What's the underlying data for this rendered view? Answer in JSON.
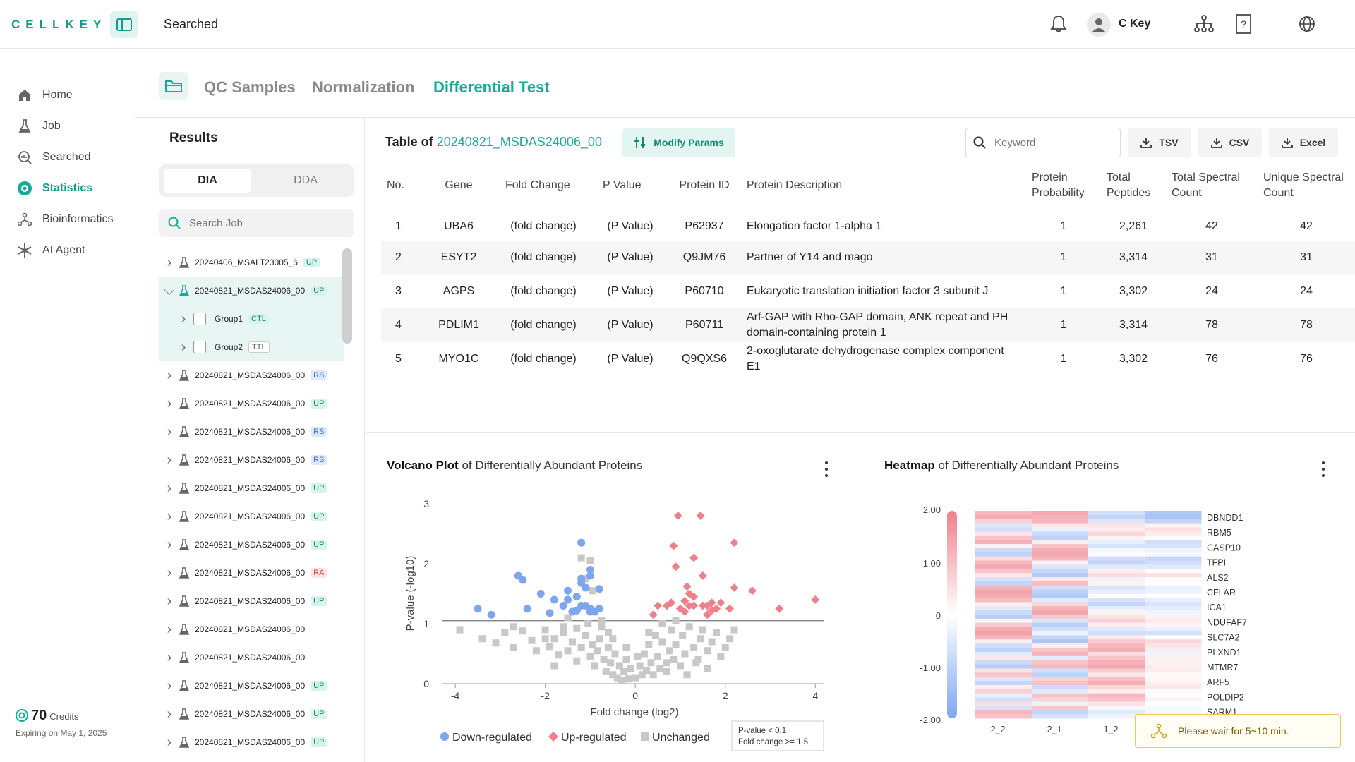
{
  "app": {
    "logo": "CELLKEY",
    "page_crumb": "Searched",
    "user_name": "C Key"
  },
  "sidebar": {
    "items": [
      {
        "label": "Home",
        "icon": "home-icon"
      },
      {
        "label": "Job",
        "icon": "flask-icon"
      },
      {
        "label": "Searched",
        "icon": "search-chart-icon"
      },
      {
        "label": "Statistics",
        "icon": "statistics-icon",
        "active": true
      },
      {
        "label": "Bioinformatics",
        "icon": "network-icon"
      },
      {
        "label": "AI Agent",
        "icon": "sparkle-icon"
      }
    ],
    "credits_value": "70",
    "credits_label": "Credits",
    "credits_expiry": "Expiring on May 1, 2025"
  },
  "tabs": [
    {
      "label": "QC Samples"
    },
    {
      "label": "Normalization"
    },
    {
      "label": "Differential Test",
      "active": true
    }
  ],
  "results": {
    "title": "Results",
    "seg": [
      "DIA",
      "DDA"
    ],
    "search_placeholder": "Search Job",
    "jobs": [
      {
        "name": "20240406_MSALT23005_6",
        "badge": "UP",
        "kind": "up"
      },
      {
        "name": "20240821_MSDAS24006_00",
        "badge": "UP",
        "kind": "up",
        "expanded": true
      },
      {
        "name": "Group1",
        "badge": "CTL",
        "kind": "ctl",
        "child": true
      },
      {
        "name": "Group2",
        "badge": "TTL",
        "kind": "ttl",
        "child": true
      },
      {
        "name": "20240821_MSDAS24006_00",
        "badge": "RS",
        "kind": "rs"
      },
      {
        "name": "20240821_MSDAS24006_00",
        "badge": "UP",
        "kind": "up"
      },
      {
        "name": "20240821_MSDAS24006_00",
        "badge": "RS",
        "kind": "rs"
      },
      {
        "name": "20240821_MSDAS24006_00",
        "badge": "RS",
        "kind": "rs"
      },
      {
        "name": "20240821_MSDAS24006_00",
        "badge": "UP",
        "kind": "up"
      },
      {
        "name": "20240821_MSDAS24006_00",
        "badge": "UP",
        "kind": "up"
      },
      {
        "name": "20240821_MSDAS24006_00",
        "badge": "UP",
        "kind": "up"
      },
      {
        "name": "20240821_MSDAS24006_00",
        "badge": "RA",
        "kind": "ra"
      },
      {
        "name": "20240821_MSDAS24006_00",
        "badge": "UP",
        "kind": "up"
      },
      {
        "name": "20240821_MSDAS24006_00",
        "badge": "",
        "kind": ""
      },
      {
        "name": "20240821_MSDAS24006_00",
        "badge": "",
        "kind": ""
      },
      {
        "name": "20240821_MSDAS24006_00",
        "badge": "UP",
        "kind": "up"
      },
      {
        "name": "20240821_MSDAS24006_00",
        "badge": "UP",
        "kind": "up"
      },
      {
        "name": "20240821_MSDAS24006_00",
        "badge": "UP",
        "kind": "up"
      }
    ]
  },
  "table": {
    "title_prefix": "Table of",
    "title_job": "20240821_MSDAS24006_00",
    "modify_label": "Modify Params",
    "keyword_placeholder": "Keyword",
    "buttons": [
      "TSV",
      "CSV",
      "Excel"
    ],
    "headers": [
      "No.",
      "Gene",
      "Fold Change",
      "P Value",
      "Protein ID",
      "Protein Description",
      "Protein Probability",
      "Total Peptides",
      "Total Spectral Count",
      "Unique Spectral Count"
    ],
    "rows": [
      [
        "1",
        "UBA6",
        "(fold change)",
        "(P Value)",
        "P62937",
        "Elongation factor 1-alpha 1",
        "1",
        "2,261",
        "42",
        "42"
      ],
      [
        "2",
        "ESYT2",
        "(fold change)",
        "(P Value)",
        "Q9JM76",
        "Partner of Y14 and mago",
        "1",
        "3,314",
        "31",
        "31"
      ],
      [
        "3",
        "AGPS",
        "(fold change)",
        "(P Value)",
        "P60710",
        "Eukaryotic translation initiation factor 3 subunit J",
        "1",
        "3,302",
        "24",
        "24"
      ],
      [
        "4",
        "PDLIM1",
        "(fold change)",
        "(P Value)",
        "P60711",
        "Arf-GAP with Rho-GAP domain, ANK repeat and PH domain-containing protein 1",
        "1",
        "3,314",
        "78",
        "78"
      ],
      [
        "5",
        "MYO1C",
        "(fold change)",
        "(P Value)",
        "Q9QXS6",
        "2-oxoglutarate dehydrogenase complex component E1",
        "1",
        "3,302",
        "76",
        "76"
      ]
    ]
  },
  "volcano": {
    "title_bold": "Volcano Plot",
    "title_rest": "of Differentially Abundant Proteins",
    "note_line1": "P-value < 0.1",
    "note_line2": "Fold change >= 1.5"
  },
  "heatmap": {
    "title_bold": "Heatmap",
    "title_rest": "of Differentially Abundant Proteins"
  },
  "toast": {
    "text": "Please wait for 5~10 min."
  },
  "colors": {
    "accent": "#19a99a",
    "down": "#7ea6f0",
    "up": "#ef7f8a",
    "unchanged": "#c8c8c8"
  },
  "chart_data": [
    {
      "type": "scatter",
      "title": "Volcano Plot of Differentially Abundant Proteins",
      "xlabel": "Fold change (log2)",
      "ylabel": "P-value (-log10)",
      "xlim": [
        -4.3,
        4.2
      ],
      "ylim": [
        0,
        3
      ],
      "xticks": [
        "-4",
        "-2",
        "0",
        "2",
        "4"
      ],
      "yticks": [
        "0",
        "1",
        "2",
        "3"
      ],
      "threshold_y": 1.05,
      "legend": [
        "Down-regulated",
        "Up-regulated",
        "Unchanged"
      ],
      "series": [
        {
          "name": "Down-regulated",
          "points": [
            [
              -3.5,
              1.25
            ],
            [
              -3.2,
              1.15
            ],
            [
              -2.6,
              1.8
            ],
            [
              -2.5,
              1.73
            ],
            [
              -2.4,
              1.25
            ],
            [
              -2.1,
              1.5
            ],
            [
              -1.9,
              1.18
            ],
            [
              -1.8,
              1.4
            ],
            [
              -1.6,
              1.3
            ],
            [
              -1.5,
              1.4
            ],
            [
              -1.5,
              1.55
            ],
            [
              -1.4,
              1.2
            ],
            [
              -1.3,
              1.22
            ],
            [
              -1.3,
              1.45
            ],
            [
              -1.2,
              1.3
            ],
            [
              -1.2,
              1.68
            ],
            [
              -1.2,
              1.75
            ],
            [
              -1.1,
              1.3
            ],
            [
              -1.0,
              1.25
            ],
            [
              -1.0,
              1.2
            ],
            [
              -0.9,
              1.2
            ],
            [
              -1.0,
              1.9
            ],
            [
              -0.8,
              1.58
            ],
            [
              -0.8,
              1.25
            ],
            [
              -1.0,
              1.8
            ],
            [
              -1.2,
              2.35
            ],
            [
              -1.1,
              1.6
            ]
          ]
        },
        {
          "name": "Up-regulated",
          "points": [
            [
              0.7,
              1.3
            ],
            [
              0.8,
              1.35
            ],
            [
              0.9,
              1.95
            ],
            [
              1.0,
              1.25
            ],
            [
              1.1,
              1.38
            ],
            [
              1.15,
              1.62
            ],
            [
              1.1,
              1.2
            ],
            [
              1.2,
              1.3
            ],
            [
              1.2,
              1.5
            ],
            [
              1.3,
              1.45
            ],
            [
              1.3,
              1.3
            ],
            [
              1.3,
              2.1
            ],
            [
              1.5,
              1.3
            ],
            [
              1.6,
              1.3
            ],
            [
              1.7,
              1.22
            ],
            [
              1.7,
              1.35
            ],
            [
              1.8,
              1.25
            ],
            [
              1.9,
              1.35
            ],
            [
              2.1,
              1.25
            ],
            [
              2.2,
              1.6
            ],
            [
              2.2,
              2.35
            ],
            [
              2.6,
              1.55
            ],
            [
              3.2,
              1.25
            ],
            [
              4.0,
              1.4
            ],
            [
              0.5,
              1.3
            ],
            [
              0.4,
              1.15
            ],
            [
              1.5,
              1.8
            ],
            [
              1.45,
              2.8
            ],
            [
              1.6,
              1.15
            ],
            [
              0.95,
              2.8
            ],
            [
              0.85,
              2.3
            ]
          ]
        },
        {
          "name": "Unchanged",
          "points": [
            [
              -3.9,
              0.9
            ],
            [
              -3.4,
              0.75
            ],
            [
              -3.1,
              0.68
            ],
            [
              -2.9,
              0.85
            ],
            [
              -2.7,
              0.6
            ],
            [
              -2.5,
              0.88
            ],
            [
              -2.3,
              0.72
            ],
            [
              -2.2,
              0.55
            ],
            [
              -2.0,
              0.9
            ],
            [
              -1.9,
              0.62
            ],
            [
              -1.8,
              0.75
            ],
            [
              -1.7,
              0.48
            ],
            [
              -1.6,
              0.85
            ],
            [
              -1.5,
              0.55
            ],
            [
              -1.4,
              0.7
            ],
            [
              -1.3,
              0.38
            ],
            [
              -1.2,
              0.6
            ],
            [
              -1.1,
              0.8
            ],
            [
              -1.0,
              0.45
            ],
            [
              -0.95,
              0.65
            ],
            [
              -0.9,
              0.3
            ],
            [
              -0.85,
              0.55
            ],
            [
              -0.8,
              0.75
            ],
            [
              -0.7,
              0.4
            ],
            [
              -0.65,
              0.2
            ],
            [
              -0.6,
              0.6
            ],
            [
              -0.55,
              0.35
            ],
            [
              -0.5,
              0.15
            ],
            [
              -0.45,
              0.5
            ],
            [
              -0.4,
              0.1
            ],
            [
              -0.35,
              0.3
            ],
            [
              -0.3,
              0.05
            ],
            [
              -0.25,
              0.2
            ],
            [
              -0.2,
              0.4
            ],
            [
              -0.15,
              0.08
            ],
            [
              -0.1,
              0.25
            ],
            [
              0.0,
              0.1
            ],
            [
              0.1,
              0.3
            ],
            [
              0.15,
              0.15
            ],
            [
              0.2,
              0.5
            ],
            [
              0.25,
              0.22
            ],
            [
              0.3,
              0.65
            ],
            [
              0.35,
              0.35
            ],
            [
              0.4,
              0.15
            ],
            [
              0.45,
              0.8
            ],
            [
              0.5,
              0.45
            ],
            [
              0.55,
              0.25
            ],
            [
              0.6,
              0.7
            ],
            [
              0.7,
              0.35
            ],
            [
              0.75,
              0.55
            ],
            [
              0.8,
              0.9
            ],
            [
              0.85,
              0.4
            ],
            [
              0.9,
              0.65
            ],
            [
              1.0,
              0.3
            ],
            [
              1.05,
              0.8
            ],
            [
              1.1,
              0.5
            ],
            [
              1.2,
              0.95
            ],
            [
              1.3,
              0.6
            ],
            [
              1.35,
              0.35
            ],
            [
              1.45,
              0.75
            ],
            [
              1.5,
              0.9
            ],
            [
              1.6,
              0.55
            ],
            [
              1.7,
              0.7
            ],
            [
              1.8,
              0.85
            ],
            [
              1.9,
              0.45
            ],
            [
              2.0,
              0.6
            ],
            [
              2.1,
              0.75
            ],
            [
              -1.05,
              1.0
            ],
            [
              -0.75,
              1.05
            ],
            [
              -1.5,
              1.1
            ],
            [
              -1.2,
              2.1
            ],
            [
              -1.1,
              1.75
            ],
            [
              -1.0,
              2.05
            ],
            [
              -0.95,
              1.55
            ],
            [
              -0.75,
              0.95
            ],
            [
              0.6,
              1.0
            ],
            [
              0.9,
              1.05
            ],
            [
              -2.7,
              0.95
            ],
            [
              -1.6,
              0.95
            ],
            [
              -1.3,
              0.92
            ],
            [
              -2.0,
              0.75
            ],
            [
              -0.6,
              0.85
            ],
            [
              0.3,
              0.85
            ],
            [
              1.4,
              0.4
            ],
            [
              2.2,
              0.9
            ],
            [
              -0.2,
              0.6
            ],
            [
              0.05,
              0.45
            ],
            [
              -0.5,
              0.75
            ],
            [
              0.7,
              0.2
            ],
            [
              1.15,
              0.15
            ],
            [
              -1.8,
              0.3
            ],
            [
              1.6,
              0.25
            ]
          ]
        }
      ]
    },
    {
      "type": "heatmap",
      "title": "Heatmap of Differentially Abundant Proteins",
      "columns": [
        "2_2",
        "2_1",
        "1_2"
      ],
      "rows_visible": [
        "DBNDD1",
        "RBM5",
        "CASP10",
        "TFPI",
        "ALS2",
        "CFLAR",
        "ICA1",
        "NDUFAF7",
        "SLC7A2",
        "PLXND1",
        "MTMR7",
        "ARF5",
        "POLDIP2",
        "SARM1"
      ],
      "color_scale": {
        "min": -2.0,
        "max": 2.0,
        "ticks": [
          "2.00",
          "1.00",
          "0",
          "-1.00",
          "-2.00"
        ],
        "low_color": "#7ea6f0",
        "mid_color": "#ffffff",
        "high_color": "#ef7f8a"
      },
      "col_profiles": [
        [
          1.2,
          1.4,
          0.8,
          -0.6,
          -0.8,
          0.5,
          1.0,
          1.3,
          0.2,
          -0.9,
          -1.1,
          0.6,
          1.2,
          1.5,
          1.0,
          0.4,
          -0.7,
          -1.0,
          1.3,
          1.6,
          1.4,
          1.1,
          0.3,
          -0.5,
          -0.9,
          -1.2,
          0.2,
          0.9,
          1.4,
          1.6,
          1.2,
          0.3,
          -0.8,
          -1.1,
          -0.5,
          0.4,
          -0.9,
          -1.2,
          0.5,
          1.0,
          -0.6,
          -1.0,
          0.3,
          0.8,
          -0.4,
          -0.8,
          0.6,
          -0.7,
          1.2,
          1.0
        ],
        [
          1.5,
          1.3,
          1.2,
          0.4,
          -0.3,
          -0.9,
          -1.1,
          0.3,
          1.0,
          1.4,
          1.5,
          1.2,
          0.2,
          -0.6,
          -1.0,
          -1.3,
          0.4,
          1.1,
          -0.8,
          -1.1,
          -1.3,
          -0.5,
          0.7,
          1.3,
          1.5,
          0.9,
          -0.6,
          -1.2,
          -0.8,
          -0.3,
          -1.0,
          -1.4,
          0.3,
          1.0,
          1.3,
          -0.5,
          1.0,
          1.2,
          -0.8,
          -1.1,
          0.8,
          1.1,
          -0.9,
          -0.5,
          1.0,
          0.7,
          -0.3,
          1.0,
          -1.0,
          -0.7
        ],
        [
          -0.8,
          -1.0,
          -0.6,
          0.5,
          0.3,
          0.7,
          0.2,
          -0.4,
          -0.7,
          -0.2,
          0.1,
          -0.8,
          -1.0,
          -0.5,
          0.3,
          0.6,
          -0.3,
          0.2,
          -0.6,
          -0.4,
          0.1,
          -0.7,
          -1.0,
          -0.4,
          0.2,
          0.5,
          0.8,
          0.3,
          -0.5,
          -0.8,
          0.4,
          0.9,
          1.2,
          1.4,
          0.6,
          1.0,
          1.3,
          1.5,
          0.9,
          0.4,
          1.1,
          1.4,
          0.7,
          0.3,
          1.2,
          1.0,
          0.5,
          -0.2,
          -0.5,
          -0.3
        ]
      ]
    }
  ]
}
